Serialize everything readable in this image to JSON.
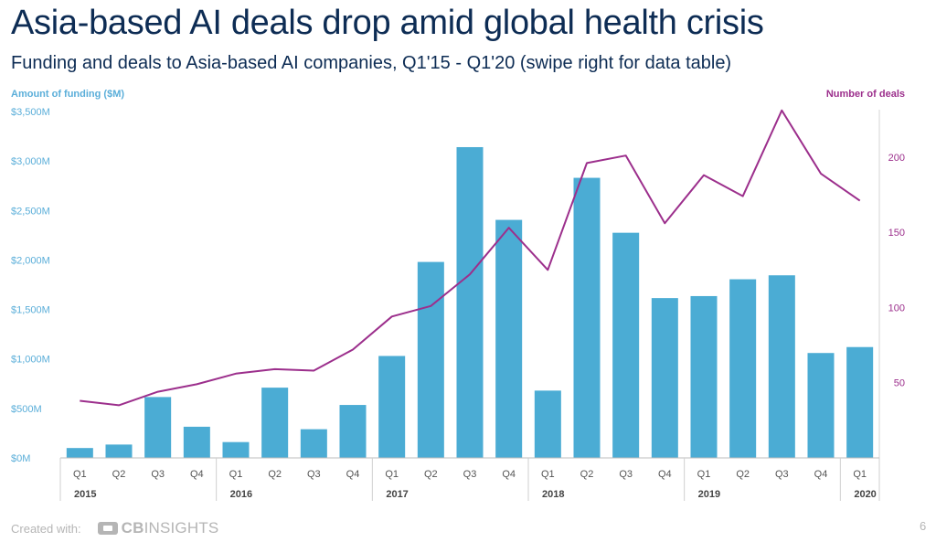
{
  "title": "Asia-based AI deals drop amid global health crisis",
  "subtitle": "Funding and deals to Asia-based AI companies, Q1'15 - Q1'20 (swipe right for data table)",
  "footer": {
    "created_with": "Created with:",
    "logo_bold": "CB",
    "logo_light": "INSIGHTS",
    "page_number": "6"
  },
  "colors": {
    "bars": "#4bacd4",
    "line": "#9c2f8c",
    "left_axis": "#5aaed9",
    "right_axis": "#9c2f8c",
    "title": "#0d2c54"
  },
  "chart_data": {
    "type": "bar",
    "combo_with": "line",
    "categories": [
      "Q1",
      "Q2",
      "Q3",
      "Q4",
      "Q1",
      "Q2",
      "Q3",
      "Q4",
      "Q1",
      "Q2",
      "Q3",
      "Q4",
      "Q1",
      "Q2",
      "Q3",
      "Q4",
      "Q1",
      "Q2",
      "Q3",
      "Q4",
      "Q1"
    ],
    "years": [
      {
        "label": "2015",
        "start": 0,
        "end": 3
      },
      {
        "label": "2016",
        "start": 4,
        "end": 7
      },
      {
        "label": "2017",
        "start": 8,
        "end": 11
      },
      {
        "label": "2018",
        "start": 12,
        "end": 15
      },
      {
        "label": "2019",
        "start": 16,
        "end": 19
      },
      {
        "label": "2020",
        "start": 20,
        "end": 20
      }
    ],
    "series": [
      {
        "kind": "bar",
        "axis": "left",
        "values": [
          100,
          135,
          615,
          315,
          160,
          710,
          290,
          535,
          1030,
          1980,
          3140,
          2405,
          680,
          2830,
          2275,
          1615,
          1635,
          1805,
          1845,
          1060,
          1120
        ]
      },
      {
        "kind": "line",
        "axis": "right",
        "values": [
          38,
          35,
          44,
          49,
          56,
          59,
          58,
          72,
          94,
          101,
          122,
          153,
          125,
          196,
          201,
          156,
          188,
          174,
          231,
          189,
          171
        ]
      }
    ],
    "left_axis": {
      "label": "Amount of funding ($M)",
      "range": [
        0,
        3500
      ],
      "ticks": [
        "$0M",
        "$500M",
        "$1,000M",
        "$1,500M",
        "$2,000M",
        "$2,500M",
        "$3,000M",
        "$3,500M"
      ]
    },
    "right_axis": {
      "label": "Number of deals",
      "range": [
        0,
        240
      ],
      "ticks": [
        50,
        100,
        150,
        200
      ]
    },
    "grid": false,
    "legend": "none"
  }
}
